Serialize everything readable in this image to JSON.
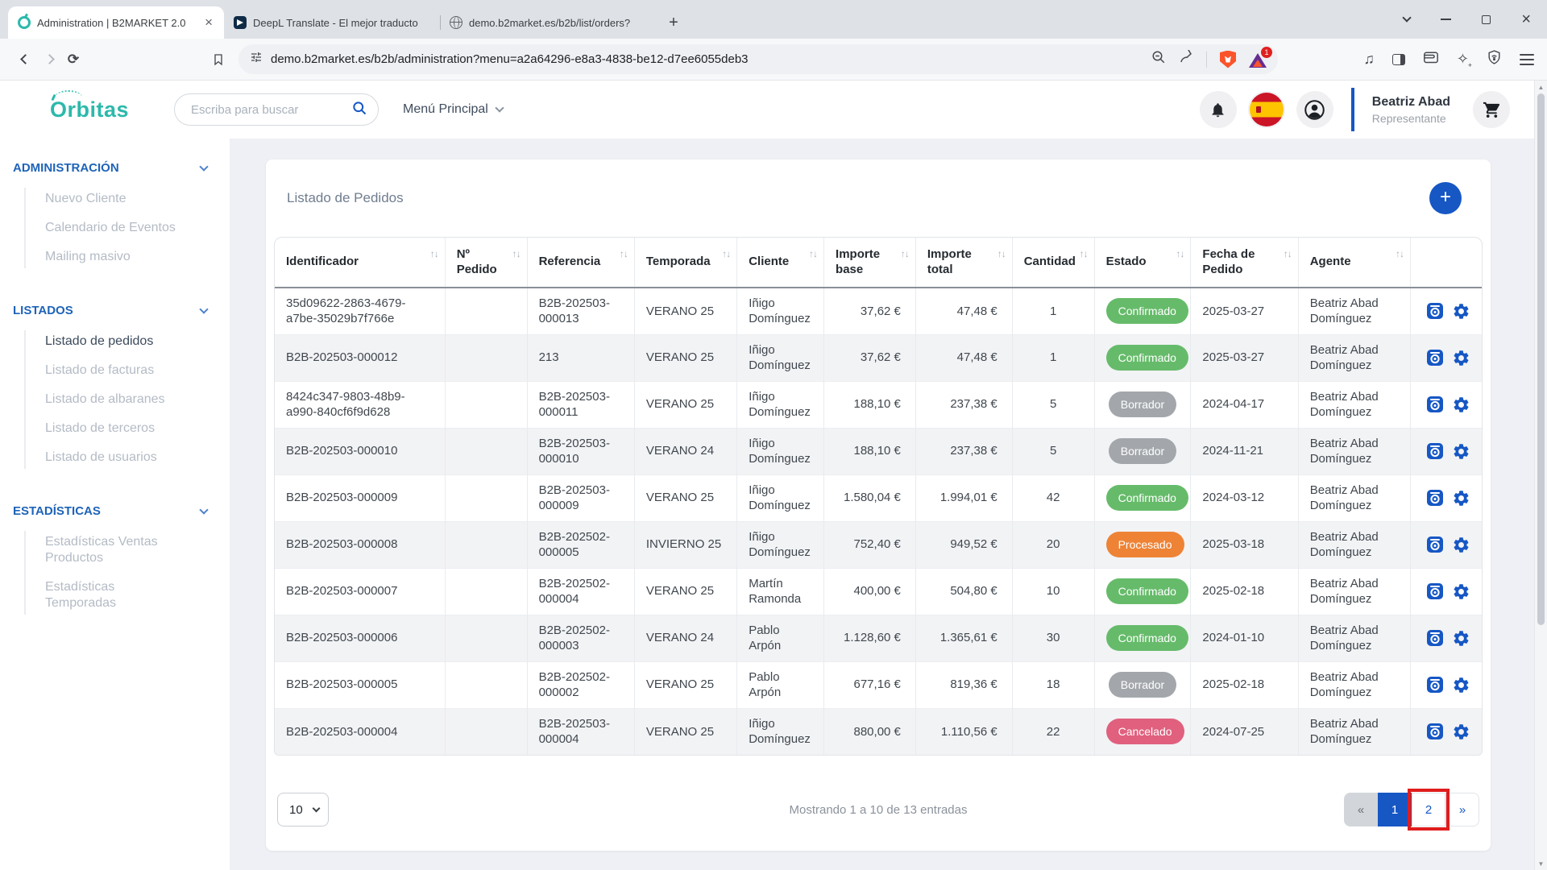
{
  "browser": {
    "tabs": [
      {
        "title": "Administration | B2MARKET 2.0",
        "active": true
      },
      {
        "title": "DeepL Translate - El mejor traducto",
        "active": false
      },
      {
        "title": "demo.b2market.es/b2b/list/orders?",
        "active": false
      }
    ],
    "url": "demo.b2market.es/b2b/administration?menu=a2a64296-e8a3-4838-be12-d7ee6055deb3",
    "rewards_badge": "1"
  },
  "header": {
    "logo_text": "Orbitas",
    "search_placeholder": "Escriba para buscar",
    "menu_label": "Menú Principal",
    "user_name": "Beatriz Abad",
    "user_role": "Representante"
  },
  "sidebar": {
    "sections": [
      {
        "label": "ADMINISTRACIÓN",
        "items": [
          {
            "label": "Nuevo Cliente"
          },
          {
            "label": "Calendario de Eventos"
          },
          {
            "label": "Mailing masivo"
          }
        ]
      },
      {
        "label": "LISTADOS",
        "items": [
          {
            "label": "Listado de pedidos",
            "active": true
          },
          {
            "label": "Listado de facturas"
          },
          {
            "label": "Listado de albaranes"
          },
          {
            "label": "Listado de terceros"
          },
          {
            "label": "Listado de usuarios"
          }
        ]
      },
      {
        "label": "ESTADÍSTICAS",
        "items": [
          {
            "label": "Estadísticas Ventas Productos"
          },
          {
            "label": "Estadísticas Temporadas"
          }
        ]
      }
    ]
  },
  "main": {
    "title": "Listado de Pedidos",
    "add_button": "+",
    "table": {
      "columns": [
        "Identificador",
        "Nº Pedido",
        "Referencia",
        "Temporada",
        "Cliente",
        "Importe base",
        "Importe total",
        "Cantidad",
        "Estado",
        "Fecha de Pedido",
        "Agente",
        ""
      ],
      "rows": [
        {
          "identificador": "35d09622-2863-4679-a7be-35029b7f766e",
          "n_pedido": "",
          "referencia": "B2B-202503-000013",
          "temporada": "VERANO 25",
          "cliente": "Iñigo Domínguez",
          "importe_base": "37,62 €",
          "importe_total": "47,48 €",
          "cantidad": "1",
          "estado": "Confirmado",
          "fecha": "2025-03-27",
          "agente": "Beatriz Abad Domínguez"
        },
        {
          "identificador": "B2B-202503-000012",
          "n_pedido": "",
          "referencia": "213",
          "temporada": "VERANO 25",
          "cliente": "Iñigo Domínguez",
          "importe_base": "37,62 €",
          "importe_total": "47,48 €",
          "cantidad": "1",
          "estado": "Confirmado",
          "fecha": "2025-03-27",
          "agente": "Beatriz Abad Domínguez"
        },
        {
          "identificador": "8424c347-9803-48b9-a990-840cf6f9d628",
          "n_pedido": "",
          "referencia": "B2B-202503-000011",
          "temporada": "VERANO 25",
          "cliente": "Iñigo Domínguez",
          "importe_base": "188,10 €",
          "importe_total": "237,38 €",
          "cantidad": "5",
          "estado": "Borrador",
          "fecha": "2024-04-17",
          "agente": "Beatriz Abad Domínguez"
        },
        {
          "identificador": "B2B-202503-000010",
          "n_pedido": "",
          "referencia": "B2B-202503-000010",
          "temporada": "VERANO 24",
          "cliente": "Iñigo Domínguez",
          "importe_base": "188,10 €",
          "importe_total": "237,38 €",
          "cantidad": "5",
          "estado": "Borrador",
          "fecha": "2024-11-21",
          "agente": "Beatriz Abad Domínguez"
        },
        {
          "identificador": "B2B-202503-000009",
          "n_pedido": "",
          "referencia": "B2B-202503-000009",
          "temporada": "VERANO 25",
          "cliente": "Iñigo Domínguez",
          "importe_base": "1.580,04 €",
          "importe_total": "1.994,01 €",
          "cantidad": "42",
          "estado": "Confirmado",
          "fecha": "2024-03-12",
          "agente": "Beatriz Abad Domínguez"
        },
        {
          "identificador": "B2B-202503-000008",
          "n_pedido": "",
          "referencia": "B2B-202502-000005",
          "temporada": "INVIERNO 25",
          "cliente": "Iñigo Domínguez",
          "importe_base": "752,40 €",
          "importe_total": "949,52 €",
          "cantidad": "20",
          "estado": "Procesado",
          "fecha": "2025-03-18",
          "agente": "Beatriz Abad Domínguez"
        },
        {
          "identificador": "B2B-202503-000007",
          "n_pedido": "",
          "referencia": "B2B-202502-000004",
          "temporada": "VERANO 25",
          "cliente": "Martín Ramonda",
          "importe_base": "400,00 €",
          "importe_total": "504,80 €",
          "cantidad": "10",
          "estado": "Confirmado",
          "fecha": "2025-02-18",
          "agente": "Beatriz Abad Domínguez"
        },
        {
          "identificador": "B2B-202503-000006",
          "n_pedido": "",
          "referencia": "B2B-202502-000003",
          "temporada": "VERANO 24",
          "cliente": "Pablo Arpón",
          "importe_base": "1.128,60 €",
          "importe_total": "1.365,61 €",
          "cantidad": "30",
          "estado": "Confirmado",
          "fecha": "2024-01-10",
          "agente": "Beatriz Abad Domínguez"
        },
        {
          "identificador": "B2B-202503-000005",
          "n_pedido": "",
          "referencia": "B2B-202502-000002",
          "temporada": "VERANO 25",
          "cliente": "Pablo Arpón",
          "importe_base": "677,16 €",
          "importe_total": "819,36 €",
          "cantidad": "18",
          "estado": "Borrador",
          "fecha": "2025-02-18",
          "agente": "Beatriz Abad Domínguez"
        },
        {
          "identificador": "B2B-202503-000004",
          "n_pedido": "",
          "referencia": "B2B-202503-000004",
          "temporada": "VERANO 25",
          "cliente": "Iñigo Domínguez",
          "importe_base": "880,00 €",
          "importe_total": "1.110,56 €",
          "cantidad": "22",
          "estado": "Cancelado",
          "fecha": "2024-07-25",
          "agente": "Beatriz Abad Domínguez"
        }
      ]
    },
    "pagination": {
      "page_size": "10",
      "showing_text": "Mostrando 1 a 10 de 13 entradas",
      "prev_label": "«",
      "next_label": "»",
      "pages": [
        "1",
        "2"
      ],
      "active_page": "1",
      "annotated_page": "2"
    }
  },
  "status_colors": {
    "Confirmado": "#66bb6a",
    "Borrador": "#a3a7ab",
    "Procesado": "#ee8336",
    "Cancelado": "#e0607e"
  },
  "accent_colors": {
    "primary_blue": "#1657c4",
    "sidebar_blue": "#1e63b8",
    "annotation_red": "#e01d1d",
    "logo_teal": "#2cb9ab"
  },
  "icons": {
    "search": "magnifier",
    "bell": "notification-bell",
    "flag": "spain-flag",
    "account": "person-circle",
    "cart": "shopping-cart",
    "view": "view-order",
    "gear": "settings-gear",
    "sort": "↑↓"
  }
}
